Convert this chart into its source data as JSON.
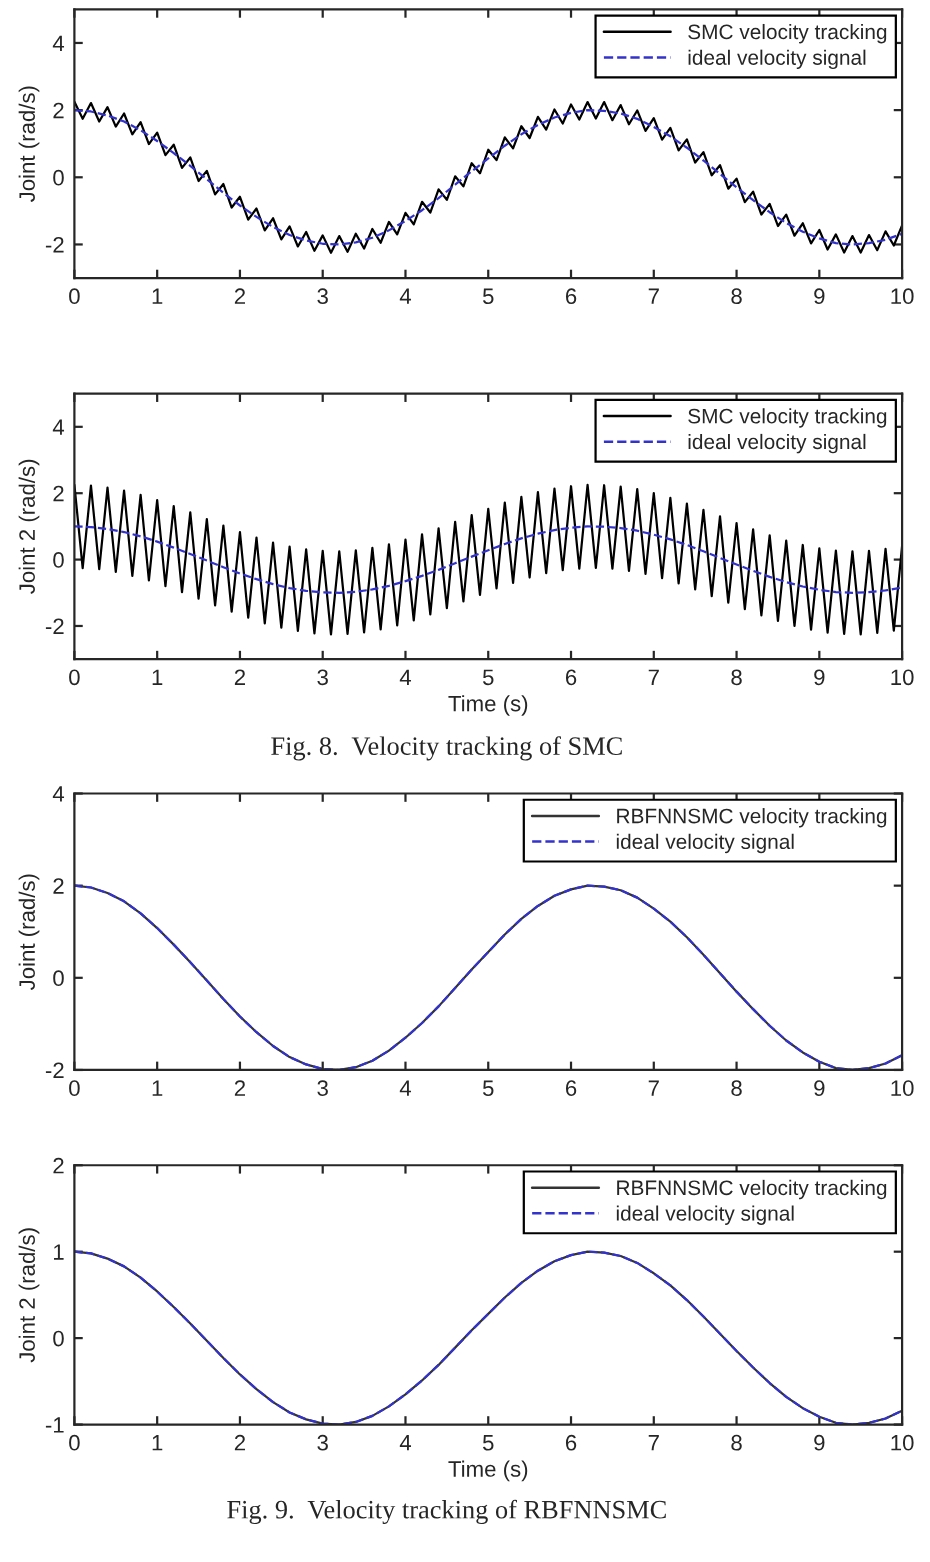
{
  "chart_data": [
    {
      "type": "line",
      "ylabel": "Joint (rad/s)",
      "xlim": [
        0,
        10
      ],
      "xticks": [
        0,
        1,
        2,
        3,
        4,
        5,
        6,
        7,
        8,
        9,
        10
      ],
      "ylim": [
        -3,
        5
      ],
      "yticks": [
        -2,
        0,
        2,
        4
      ],
      "grid": false,
      "legend": "top right",
      "marker": "none",
      "series": [
        {
          "name": "SMC velocity tracking",
          "color": "#000000",
          "line_style": "solid",
          "x": [
            0,
            0.1,
            0.2,
            0.3,
            0.4,
            0.5,
            0.6,
            0.7,
            0.8,
            0.9,
            1,
            1.1,
            1.2,
            1.3,
            1.4,
            1.5,
            1.6,
            1.7,
            1.8,
            1.9,
            2,
            2.1,
            2.2,
            2.3,
            2.4,
            2.5,
            2.6,
            2.7,
            2.8,
            2.9,
            3,
            3.1,
            3.2,
            3.3,
            3.4,
            3.5,
            3.6,
            3.7,
            3.8,
            3.9,
            4,
            4.1,
            4.2,
            4.3,
            4.4,
            4.5,
            4.6,
            4.7,
            4.8,
            4.9,
            5,
            5.1,
            5.2,
            5.3,
            5.4,
            5.5,
            5.6,
            5.7,
            5.8,
            5.9,
            6,
            6.1,
            6.2,
            6.3,
            6.4,
            6.5,
            6.6,
            6.7,
            6.8,
            6.9,
            7,
            7.1,
            7.2,
            7.3,
            7.4,
            7.5,
            7.6,
            7.7,
            7.8,
            7.9,
            8,
            8.1,
            8.2,
            8.3,
            8.4,
            8.5,
            8.6,
            8.7,
            8.8,
            8.9,
            9,
            9.1,
            9.2,
            9.3,
            9.4,
            9.5,
            9.6,
            9.7,
            9.8,
            9.9,
            10
          ],
          "values": [
            2.25,
            1.74,
            2.21,
            1.66,
            2.09,
            1.51,
            1.9,
            1.28,
            1.64,
            0.99,
            1.33,
            0.66,
            0.97,
            0.28,
            0.59,
            -0.11,
            0.19,
            -0.51,
            -0.2,
            -0.9,
            -0.58,
            -1.26,
            -0.93,
            -1.58,
            -1.22,
            -1.85,
            -1.46,
            -2.06,
            -1.63,
            -2.19,
            -1.73,
            -2.25,
            -1.75,
            -2.22,
            -1.68,
            -2.12,
            -1.54,
            -1.95,
            -1.33,
            -1.7,
            -1.06,
            -1.4,
            -0.73,
            -1.05,
            -0.36,
            -0.67,
            0.03,
            -0.27,
            0.42,
            0.12,
            0.82,
            0.51,
            1.19,
            0.86,
            1.52,
            1.17,
            1.8,
            1.42,
            2.02,
            1.6,
            2.17,
            1.72,
            2.24,
            1.75,
            2.24,
            1.7,
            2.15,
            1.58,
            1.99,
            1.38,
            1.76,
            1.12,
            1.47,
            0.8,
            1.13,
            0.44,
            0.75,
            0.06,
            0.36,
            -0.34,
            -0.04,
            -0.74,
            -0.43,
            -1.11,
            -0.79,
            -1.45,
            -1.11,
            -1.74,
            -1.37,
            -1.97,
            -1.57,
            -2.15,
            -1.7,
            -2.24,
            -1.75,
            -2.24,
            -1.72,
            -2.17,
            -1.61,
            -2.03,
            -1.43
          ]
        },
        {
          "name": "ideal velocity signal",
          "color": "#3333cc",
          "line_style": "dashed",
          "x": [
            0,
            0.2,
            0.4,
            0.6,
            0.8,
            1,
            1.2,
            1.4,
            1.6,
            1.8,
            2,
            2.2,
            2.4,
            2.6,
            2.8,
            3,
            3.2,
            3.4,
            3.6,
            3.8,
            4,
            4.2,
            4.4,
            4.6,
            4.8,
            5,
            5.2,
            5.4,
            5.6,
            5.8,
            6,
            6.2,
            6.4,
            6.6,
            6.8,
            7,
            7.2,
            7.4,
            7.6,
            7.8,
            8,
            8.2,
            8.4,
            8.6,
            8.8,
            9,
            9.2,
            9.4,
            9.6,
            9.8,
            10
          ],
          "values": [
            2.0,
            1.96,
            1.84,
            1.66,
            1.4,
            1.08,
            0.72,
            0.34,
            -0.06,
            -0.46,
            -0.84,
            -1.18,
            -1.48,
            -1.72,
            -1.88,
            -1.98,
            -2.0,
            -1.94,
            -1.8,
            -1.58,
            -1.3,
            -0.98,
            -0.62,
            -0.22,
            0.18,
            0.56,
            0.94,
            1.28,
            1.56,
            1.78,
            1.92,
            2.0,
            1.98,
            1.9,
            1.74,
            1.5,
            1.22,
            0.88,
            0.5,
            0.1,
            -0.3,
            -0.68,
            -1.04,
            -1.36,
            -1.62,
            -1.82,
            -1.96,
            -2.0,
            -1.96,
            -1.86,
            -1.68
          ]
        }
      ]
    },
    {
      "type": "line",
      "xlabel": "Time (s)",
      "ylabel": "Joint 2 (rad/s)",
      "xlim": [
        0,
        10
      ],
      "xticks": [
        0,
        1,
        2,
        3,
        4,
        5,
        6,
        7,
        8,
        9,
        10
      ],
      "ylim": [
        -3,
        5
      ],
      "yticks": [
        -2,
        0,
        2,
        4
      ],
      "grid": false,
      "legend": "top right",
      "marker": "none",
      "annotations": [
        "Fig. 8.  Velocity tracking of SMC"
      ],
      "series": [
        {
          "name": "SMC velocity tracking",
          "color": "#000000",
          "line_style": "solid",
          "x": [
            0,
            0.1,
            0.2,
            0.3,
            0.4,
            0.5,
            0.6,
            0.7,
            0.8,
            0.9,
            1,
            1.1,
            1.2,
            1.3,
            1.4,
            1.5,
            1.6,
            1.7,
            1.8,
            1.9,
            2,
            2.1,
            2.2,
            2.3,
            2.4,
            2.5,
            2.6,
            2.7,
            2.8,
            2.9,
            3,
            3.1,
            3.2,
            3.3,
            3.4,
            3.5,
            3.6,
            3.7,
            3.8,
            3.9,
            4,
            4.1,
            4.2,
            4.3,
            4.4,
            4.5,
            4.6,
            4.7,
            4.8,
            4.9,
            5,
            5.1,
            5.2,
            5.3,
            5.4,
            5.5,
            5.6,
            5.7,
            5.8,
            5.9,
            6,
            6.1,
            6.2,
            6.3,
            6.4,
            6.5,
            6.6,
            6.7,
            6.8,
            6.9,
            7,
            7.1,
            7.2,
            7.3,
            7.4,
            7.5,
            7.6,
            7.7,
            7.8,
            7.9,
            8,
            8.1,
            8.2,
            8.3,
            8.4,
            8.5,
            8.6,
            8.7,
            8.8,
            8.9,
            9,
            9.1,
            9.2,
            9.3,
            9.4,
            9.5,
            9.6,
            9.7,
            9.8,
            9.9,
            10
          ],
          "values": [
            2.25,
            -0.26,
            2.23,
            -0.29,
            2.17,
            -0.37,
            2.08,
            -0.49,
            1.95,
            -0.63,
            1.79,
            -0.8,
            1.61,
            -0.98,
            1.42,
            -1.18,
            1.22,
            -1.38,
            1.02,
            -1.57,
            0.83,
            -1.75,
            0.66,
            -1.92,
            0.51,
            -2.05,
            0.39,
            -2.15,
            0.31,
            -2.22,
            0.26,
            -2.25,
            0.25,
            -2.24,
            0.28,
            -2.19,
            0.35,
            -2.1,
            0.46,
            -1.98,
            0.6,
            -1.83,
            0.76,
            -1.65,
            0.94,
            -1.46,
            1.14,
            -1.26,
            1.34,
            -1.06,
            1.53,
            -0.87,
            1.72,
            -0.7,
            1.89,
            -0.54,
            2.03,
            -0.41,
            2.14,
            -0.32,
            2.21,
            -0.27,
            2.25,
            -0.25,
            2.24,
            -0.27,
            2.2,
            -0.34,
            2.12,
            -0.43,
            2.0,
            -0.56,
            1.86,
            -0.72,
            1.69,
            -0.9,
            1.5,
            -1.1,
            1.3,
            -1.3,
            1.1,
            -1.49,
            0.91,
            -1.68,
            0.73,
            -1.85,
            0.57,
            -2.0,
            0.44,
            -2.11,
            0.34,
            -2.2,
            0.27,
            -2.24,
            0.25,
            -2.25,
            0.26,
            -2.21,
            0.32,
            -2.14,
            0.41
          ]
        },
        {
          "name": "ideal velocity signal",
          "color": "#3333cc",
          "line_style": "dashed",
          "x": [
            0,
            0.2,
            0.4,
            0.6,
            0.8,
            1,
            1.2,
            1.4,
            1.6,
            1.8,
            2,
            2.2,
            2.4,
            2.6,
            2.8,
            3,
            3.2,
            3.4,
            3.6,
            3.8,
            4,
            4.2,
            4.4,
            4.6,
            4.8,
            5,
            5.2,
            5.4,
            5.6,
            5.8,
            6,
            6.2,
            6.4,
            6.6,
            6.8,
            7,
            7.2,
            7.4,
            7.6,
            7.8,
            8,
            8.2,
            8.4,
            8.6,
            8.8,
            9,
            9.2,
            9.4,
            9.6,
            9.8,
            10
          ],
          "values": [
            1.0,
            0.98,
            0.92,
            0.83,
            0.7,
            0.54,
            0.36,
            0.17,
            -0.03,
            -0.23,
            -0.42,
            -0.59,
            -0.74,
            -0.86,
            -0.94,
            -0.99,
            -1.0,
            -0.97,
            -0.9,
            -0.79,
            -0.65,
            -0.49,
            -0.31,
            -0.11,
            0.09,
            0.28,
            0.47,
            0.64,
            0.78,
            0.89,
            0.96,
            1.0,
            0.99,
            0.95,
            0.87,
            0.75,
            0.61,
            0.44,
            0.25,
            0.05,
            -0.15,
            -0.34,
            -0.52,
            -0.68,
            -0.81,
            -0.91,
            -0.98,
            -1.0,
            -0.98,
            -0.93,
            -0.84
          ]
        }
      ]
    },
    {
      "type": "line",
      "ylabel": "Joint (rad/s)",
      "xlim": [
        0,
        10
      ],
      "xticks": [
        0,
        1,
        2,
        3,
        4,
        5,
        6,
        7,
        8,
        9,
        10
      ],
      "ylim": [
        -2,
        4
      ],
      "yticks": [
        -2,
        0,
        2,
        4
      ],
      "grid": false,
      "legend": "top right",
      "marker": "none",
      "series": [
        {
          "name": "RBFNNSMC velocity tracking",
          "color": "#333333",
          "line_style": "solid",
          "x": [
            0,
            0.2,
            0.4,
            0.6,
            0.8,
            1,
            1.2,
            1.4,
            1.6,
            1.8,
            2,
            2.2,
            2.4,
            2.6,
            2.8,
            3,
            3.2,
            3.4,
            3.6,
            3.8,
            4,
            4.2,
            4.4,
            4.6,
            4.8,
            5,
            5.2,
            5.4,
            5.6,
            5.8,
            6,
            6.2,
            6.4,
            6.6,
            6.8,
            7,
            7.2,
            7.4,
            7.6,
            7.8,
            8,
            8.2,
            8.4,
            8.6,
            8.8,
            9,
            9.2,
            9.4,
            9.6,
            9.8,
            10
          ],
          "values": [
            2.0,
            1.96,
            1.84,
            1.66,
            1.4,
            1.08,
            0.72,
            0.34,
            -0.06,
            -0.46,
            -0.84,
            -1.18,
            -1.48,
            -1.72,
            -1.88,
            -1.98,
            -2.0,
            -1.94,
            -1.8,
            -1.58,
            -1.3,
            -0.98,
            -0.62,
            -0.22,
            0.18,
            0.56,
            0.94,
            1.28,
            1.56,
            1.78,
            1.92,
            2.0,
            1.98,
            1.9,
            1.74,
            1.5,
            1.22,
            0.88,
            0.5,
            0.1,
            -0.3,
            -0.68,
            -1.04,
            -1.36,
            -1.62,
            -1.82,
            -1.96,
            -2.0,
            -1.96,
            -1.86,
            -1.68
          ]
        },
        {
          "name": "ideal velocity signal",
          "color": "#3333cc",
          "line_style": "dashed",
          "x": [
            0,
            0.2,
            0.4,
            0.6,
            0.8,
            1,
            1.2,
            1.4,
            1.6,
            1.8,
            2,
            2.2,
            2.4,
            2.6,
            2.8,
            3,
            3.2,
            3.4,
            3.6,
            3.8,
            4,
            4.2,
            4.4,
            4.6,
            4.8,
            5,
            5.2,
            5.4,
            5.6,
            5.8,
            6,
            6.2,
            6.4,
            6.6,
            6.8,
            7,
            7.2,
            7.4,
            7.6,
            7.8,
            8,
            8.2,
            8.4,
            8.6,
            8.8,
            9,
            9.2,
            9.4,
            9.6,
            9.8,
            10
          ],
          "values": [
            2.0,
            1.96,
            1.84,
            1.66,
            1.4,
            1.08,
            0.72,
            0.34,
            -0.06,
            -0.46,
            -0.84,
            -1.18,
            -1.48,
            -1.72,
            -1.88,
            -1.98,
            -2.0,
            -1.94,
            -1.8,
            -1.58,
            -1.3,
            -0.98,
            -0.62,
            -0.22,
            0.18,
            0.56,
            0.94,
            1.28,
            1.56,
            1.78,
            1.92,
            2.0,
            1.98,
            1.9,
            1.74,
            1.5,
            1.22,
            0.88,
            0.5,
            0.1,
            -0.3,
            -0.68,
            -1.04,
            -1.36,
            -1.62,
            -1.82,
            -1.96,
            -2.0,
            -1.96,
            -1.86,
            -1.68
          ]
        }
      ]
    },
    {
      "type": "line",
      "xlabel": "Time (s)",
      "ylabel": "Joint 2 (rad/s)",
      "xlim": [
        0,
        10
      ],
      "xticks": [
        0,
        1,
        2,
        3,
        4,
        5,
        6,
        7,
        8,
        9,
        10
      ],
      "ylim": [
        -1,
        2
      ],
      "yticks": [
        -1,
        0,
        1,
        2
      ],
      "grid": false,
      "legend": "top right",
      "marker": "none",
      "annotations": [
        "Fig. 9.  Velocity tracking of RBFNNSMC"
      ],
      "series": [
        {
          "name": "RBFNNSMC velocity tracking",
          "color": "#333333",
          "line_style": "solid",
          "x": [
            0,
            0.2,
            0.4,
            0.6,
            0.8,
            1,
            1.2,
            1.4,
            1.6,
            1.8,
            2,
            2.2,
            2.4,
            2.6,
            2.8,
            3,
            3.2,
            3.4,
            3.6,
            3.8,
            4,
            4.2,
            4.4,
            4.6,
            4.8,
            5,
            5.2,
            5.4,
            5.6,
            5.8,
            6,
            6.2,
            6.4,
            6.6,
            6.8,
            7,
            7.2,
            7.4,
            7.6,
            7.8,
            8,
            8.2,
            8.4,
            8.6,
            8.8,
            9,
            9.2,
            9.4,
            9.6,
            9.8,
            10
          ],
          "values": [
            1.0,
            0.98,
            0.92,
            0.83,
            0.7,
            0.54,
            0.36,
            0.17,
            -0.03,
            -0.23,
            -0.42,
            -0.59,
            -0.74,
            -0.86,
            -0.94,
            -0.99,
            -1.0,
            -0.97,
            -0.9,
            -0.79,
            -0.65,
            -0.49,
            -0.31,
            -0.11,
            0.09,
            0.28,
            0.47,
            0.64,
            0.78,
            0.89,
            0.96,
            1.0,
            0.99,
            0.95,
            0.87,
            0.75,
            0.61,
            0.44,
            0.25,
            0.05,
            -0.15,
            -0.34,
            -0.52,
            -0.68,
            -0.81,
            -0.91,
            -0.98,
            -1.0,
            -0.98,
            -0.93,
            -0.84
          ]
        },
        {
          "name": "ideal velocity signal",
          "color": "#3333cc",
          "line_style": "dashed",
          "x": [
            0,
            0.2,
            0.4,
            0.6,
            0.8,
            1,
            1.2,
            1.4,
            1.6,
            1.8,
            2,
            2.2,
            2.4,
            2.6,
            2.8,
            3,
            3.2,
            3.4,
            3.6,
            3.8,
            4,
            4.2,
            4.4,
            4.6,
            4.8,
            5,
            5.2,
            5.4,
            5.6,
            5.8,
            6,
            6.2,
            6.4,
            6.6,
            6.8,
            7,
            7.2,
            7.4,
            7.6,
            7.8,
            8,
            8.2,
            8.4,
            8.6,
            8.8,
            9,
            9.2,
            9.4,
            9.6,
            9.8,
            10
          ],
          "values": [
            1.0,
            0.98,
            0.92,
            0.83,
            0.7,
            0.54,
            0.36,
            0.17,
            -0.03,
            -0.23,
            -0.42,
            -0.59,
            -0.74,
            -0.86,
            -0.94,
            -0.99,
            -1.0,
            -0.97,
            -0.9,
            -0.79,
            -0.65,
            -0.49,
            -0.31,
            -0.11,
            0.09,
            0.28,
            0.47,
            0.64,
            0.78,
            0.89,
            0.96,
            1.0,
            0.99,
            0.95,
            0.87,
            0.75,
            0.61,
            0.44,
            0.25,
            0.05,
            -0.15,
            -0.34,
            -0.52,
            -0.68,
            -0.81,
            -0.91,
            -0.98,
            -1.0,
            -0.98,
            -0.93,
            -0.84
          ]
        }
      ]
    }
  ]
}
